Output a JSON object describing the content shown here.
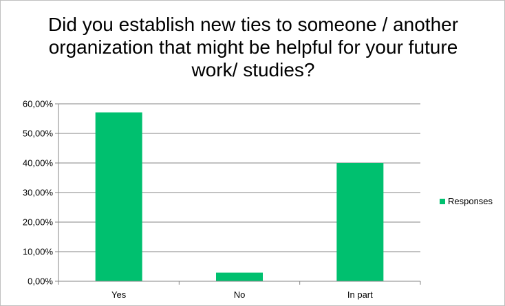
{
  "chart_data": {
    "type": "bar",
    "title": "Did you establish new ties to someone / another organization that might be helpful for your future work/ studies?",
    "xlabel": "",
    "ylabel": "",
    "categories": [
      "Yes",
      "No",
      "In part"
    ],
    "series": [
      {
        "name": "Responses",
        "values": [
          57.1,
          2.9,
          40.0
        ],
        "color": "#00c06f"
      }
    ],
    "ylim": [
      0,
      60
    ],
    "yticks": [
      0,
      10,
      20,
      30,
      40,
      50,
      60
    ],
    "ytick_labels": [
      "0,00%",
      "10,00%",
      "20,00%",
      "30,00%",
      "40,00%",
      "50,00%",
      "60,00%"
    ],
    "grid": true,
    "legend_position": "right",
    "gridline_color": "#868686"
  }
}
